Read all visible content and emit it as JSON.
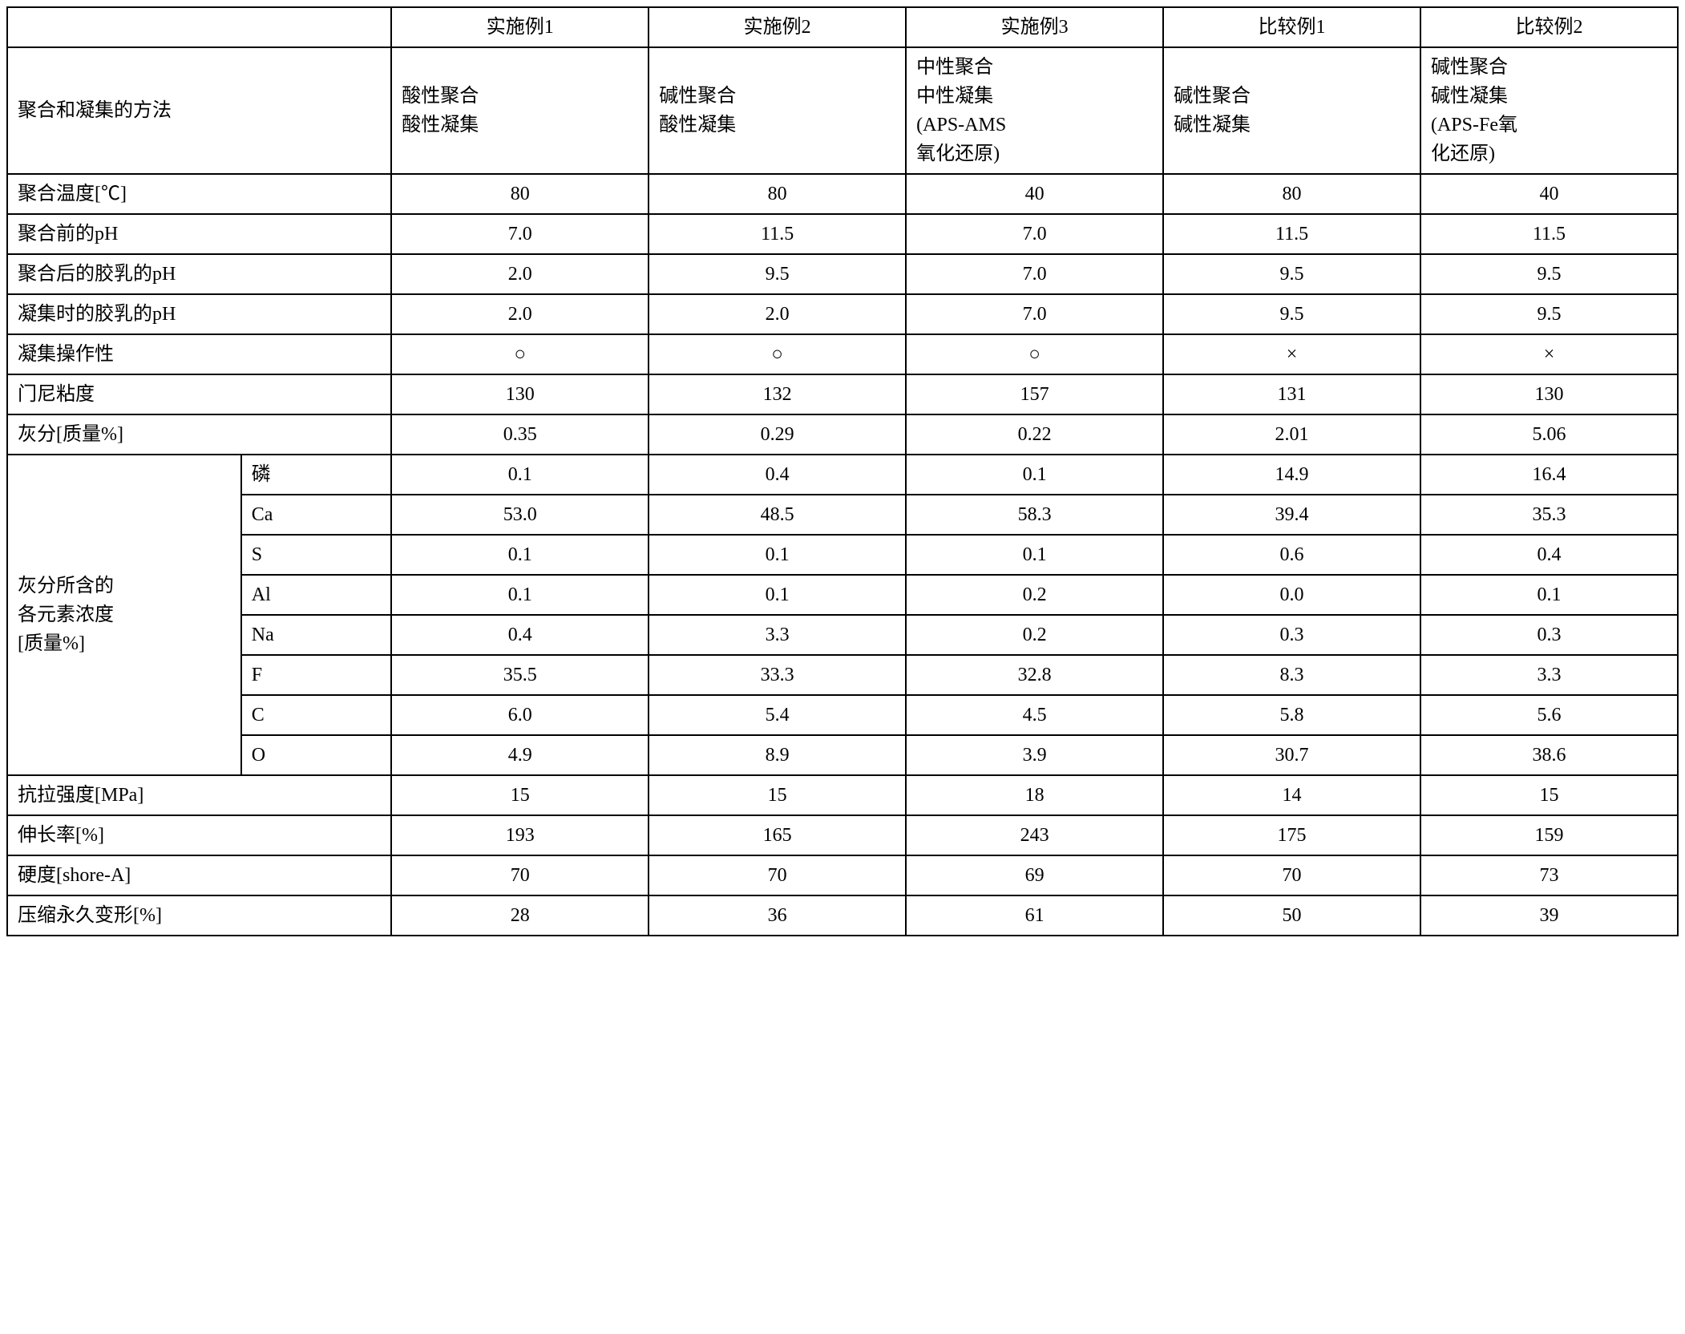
{
  "headers": {
    "c1": "实施例1",
    "c2": "实施例2",
    "c3": "实施例3",
    "c4": "比较例1",
    "c5": "比较例2"
  },
  "rows": {
    "method": {
      "label": "聚合和凝集的方法",
      "v1": "酸性聚合\n酸性凝集",
      "v2": "碱性聚合\n酸性凝集",
      "v3": "中性聚合\n中性凝集\n(APS-AMS\n氧化还原)",
      "v4": "碱性聚合\n碱性凝集",
      "v5": "碱性聚合\n碱性凝集\n(APS-Fe氧\n化还原)"
    },
    "polyTemp": {
      "label": "聚合温度[℃]",
      "v1": "80",
      "v2": "80",
      "v3": "40",
      "v4": "80",
      "v5": "40"
    },
    "phBefore": {
      "label": "聚合前的pH",
      "v1": "7.0",
      "v2": "11.5",
      "v3": "7.0",
      "v4": "11.5",
      "v5": "11.5"
    },
    "phAfter": {
      "label": "聚合后的胶乳的pH",
      "v1": "2.0",
      "v2": "9.5",
      "v3": "7.0",
      "v4": "9.5",
      "v5": "9.5"
    },
    "phAgg": {
      "label": "凝集时的胶乳的pH",
      "v1": "2.0",
      "v2": "2.0",
      "v3": "7.0",
      "v4": "9.5",
      "v5": "9.5"
    },
    "aggOp": {
      "label": "凝集操作性",
      "v1": "○",
      "v2": "○",
      "v3": "○",
      "v4": "×",
      "v5": "×"
    },
    "mooney": {
      "label": "门尼粘度",
      "v1": "130",
      "v2": "132",
      "v3": "157",
      "v4": "131",
      "v5": "130"
    },
    "ash": {
      "label": "灰分[质量%]",
      "v1": "0.35",
      "v2": "0.29",
      "v3": "0.22",
      "v4": "2.01",
      "v5": "5.06"
    },
    "ashGroupLabel": "灰分所含的\n各元素浓度\n[质量%]",
    "ashElems": {
      "P": {
        "label": "磷",
        "v1": "0.1",
        "v2": "0.4",
        "v3": "0.1",
        "v4": "14.9",
        "v5": "16.4"
      },
      "Ca": {
        "label": "Ca",
        "v1": "53.0",
        "v2": "48.5",
        "v3": "58.3",
        "v4": "39.4",
        "v5": "35.3"
      },
      "S": {
        "label": "S",
        "v1": "0.1",
        "v2": "0.1",
        "v3": "0.1",
        "v4": "0.6",
        "v5": "0.4"
      },
      "Al": {
        "label": "Al",
        "v1": "0.1",
        "v2": "0.1",
        "v3": "0.2",
        "v4": "0.0",
        "v5": "0.1"
      },
      "Na": {
        "label": "Na",
        "v1": "0.4",
        "v2": "3.3",
        "v3": "0.2",
        "v4": "0.3",
        "v5": "0.3"
      },
      "F": {
        "label": "F",
        "v1": "35.5",
        "v2": "33.3",
        "v3": "32.8",
        "v4": "8.3",
        "v5": "3.3"
      },
      "C": {
        "label": "C",
        "v1": "6.0",
        "v2": "5.4",
        "v3": "4.5",
        "v4": "5.8",
        "v5": "5.6"
      },
      "O": {
        "label": "O",
        "v1": "4.9",
        "v2": "8.9",
        "v3": "3.9",
        "v4": "30.7",
        "v5": "38.6"
      }
    },
    "tensile": {
      "label": "抗拉强度[MPa]",
      "v1": "15",
      "v2": "15",
      "v3": "18",
      "v4": "14",
      "v5": "15"
    },
    "elong": {
      "label": "伸长率[%]",
      "v1": "193",
      "v2": "165",
      "v3": "243",
      "v4": "175",
      "v5": "159"
    },
    "hard": {
      "label": "硬度[shore-A]",
      "v1": "70",
      "v2": "70",
      "v3": "69",
      "v4": "70",
      "v5": "73"
    },
    "compSet": {
      "label": "压缩永久变形[%]",
      "v1": "28",
      "v2": "36",
      "v3": "61",
      "v4": "50",
      "v5": "39"
    }
  },
  "style": {
    "border_color": "#000000",
    "background_color": "#ffffff",
    "text_color": "#000000",
    "font_size_pt": 18,
    "font_family": "SimSun"
  }
}
